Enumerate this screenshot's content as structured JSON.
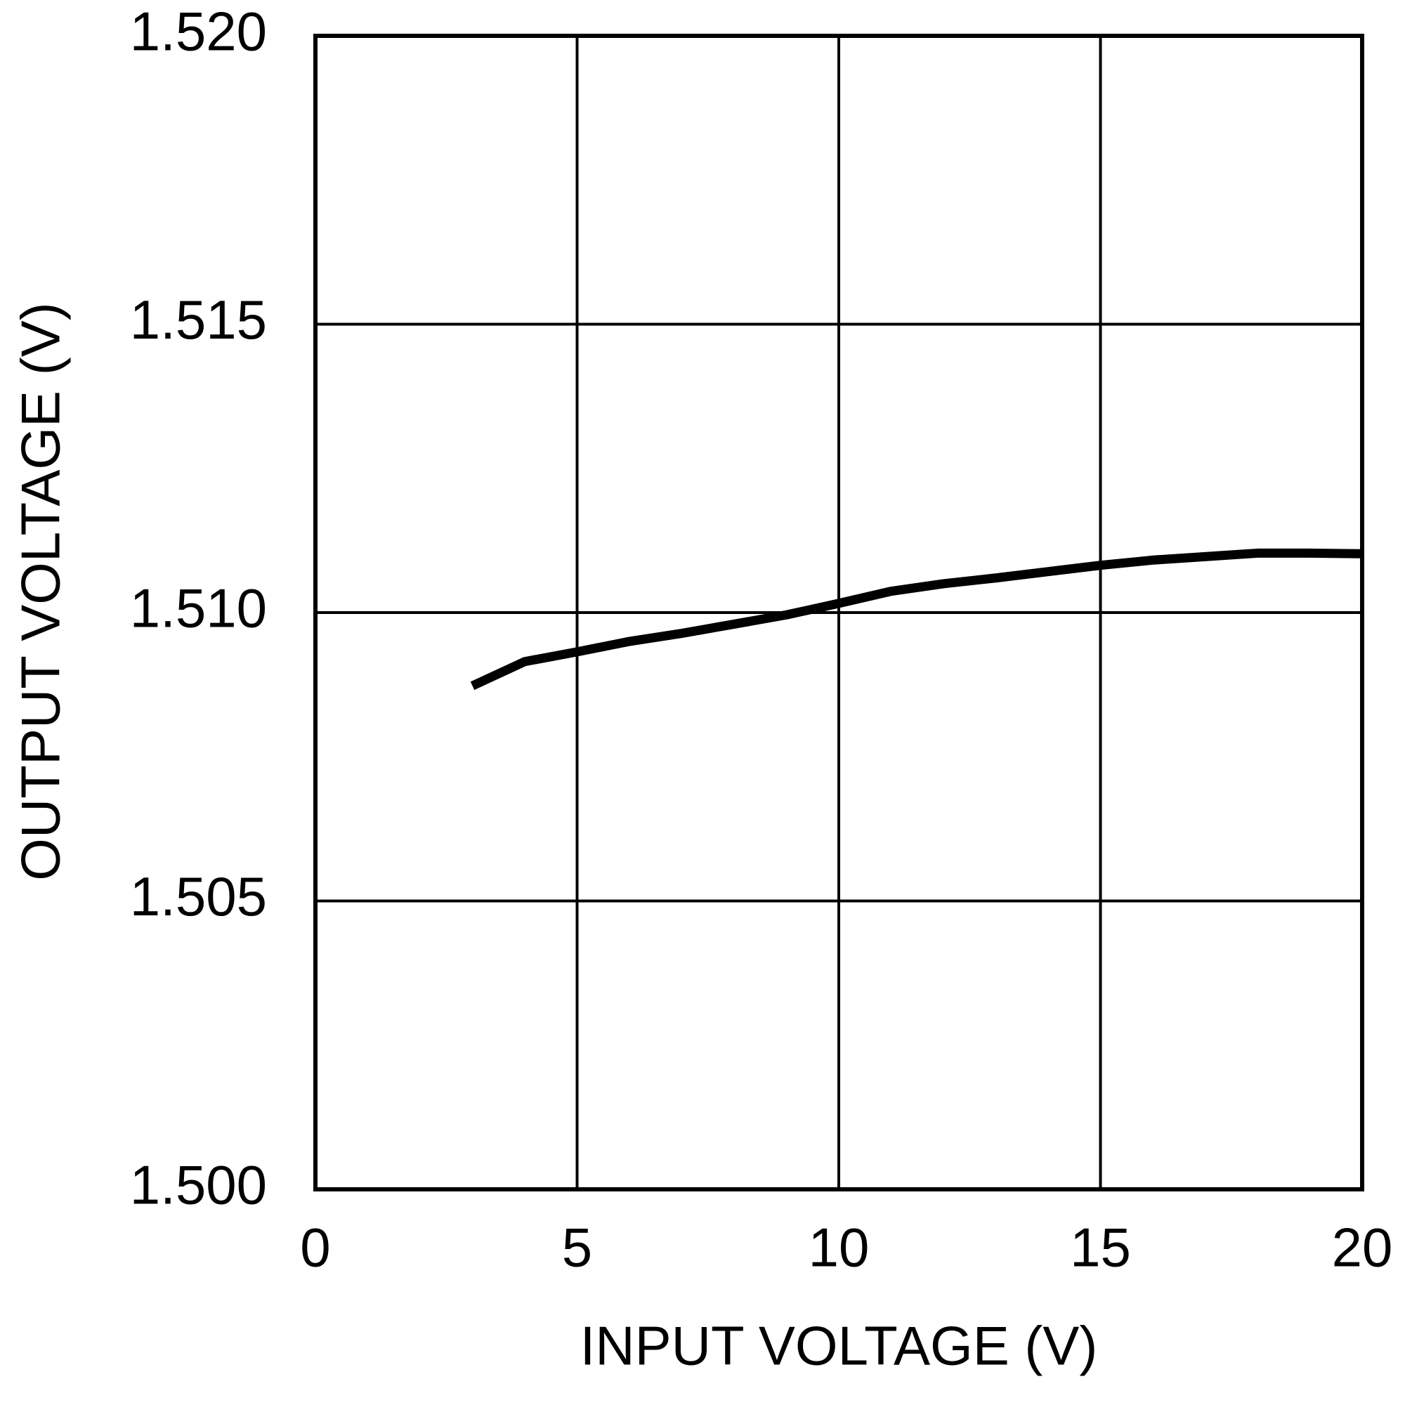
{
  "chart_data": {
    "type": "line",
    "xlabel": "INPUT VOLTAGE (V)",
    "ylabel": "OUTPUT VOLTAGE (V)",
    "x": [
      3,
      4,
      5,
      6,
      7,
      8,
      9,
      10,
      11,
      12,
      13,
      14,
      15,
      16,
      17,
      18,
      19,
      20
    ],
    "values": [
      1.50873,
      1.50915,
      1.50932,
      1.5095,
      1.50964,
      1.5098,
      1.50996,
      1.51016,
      1.51037,
      1.5105,
      1.5106,
      1.51071,
      1.51082,
      1.51091,
      1.51097,
      1.51103,
      1.51103,
      1.51102
    ],
    "color": "#000000",
    "xlim": [
      0,
      20
    ],
    "xticks": [
      0,
      5,
      10,
      15,
      20
    ],
    "ylim": [
      1.5,
      1.52
    ],
    "yticks": [
      {
        "value": 1.5,
        "label": "1.500"
      },
      {
        "value": 1.505,
        "label": "1.505"
      },
      {
        "value": 1.51,
        "label": "1.510"
      },
      {
        "value": 1.515,
        "label": "1.515"
      },
      {
        "value": 1.52,
        "label": "1.520"
      }
    ],
    "grid": true
  }
}
